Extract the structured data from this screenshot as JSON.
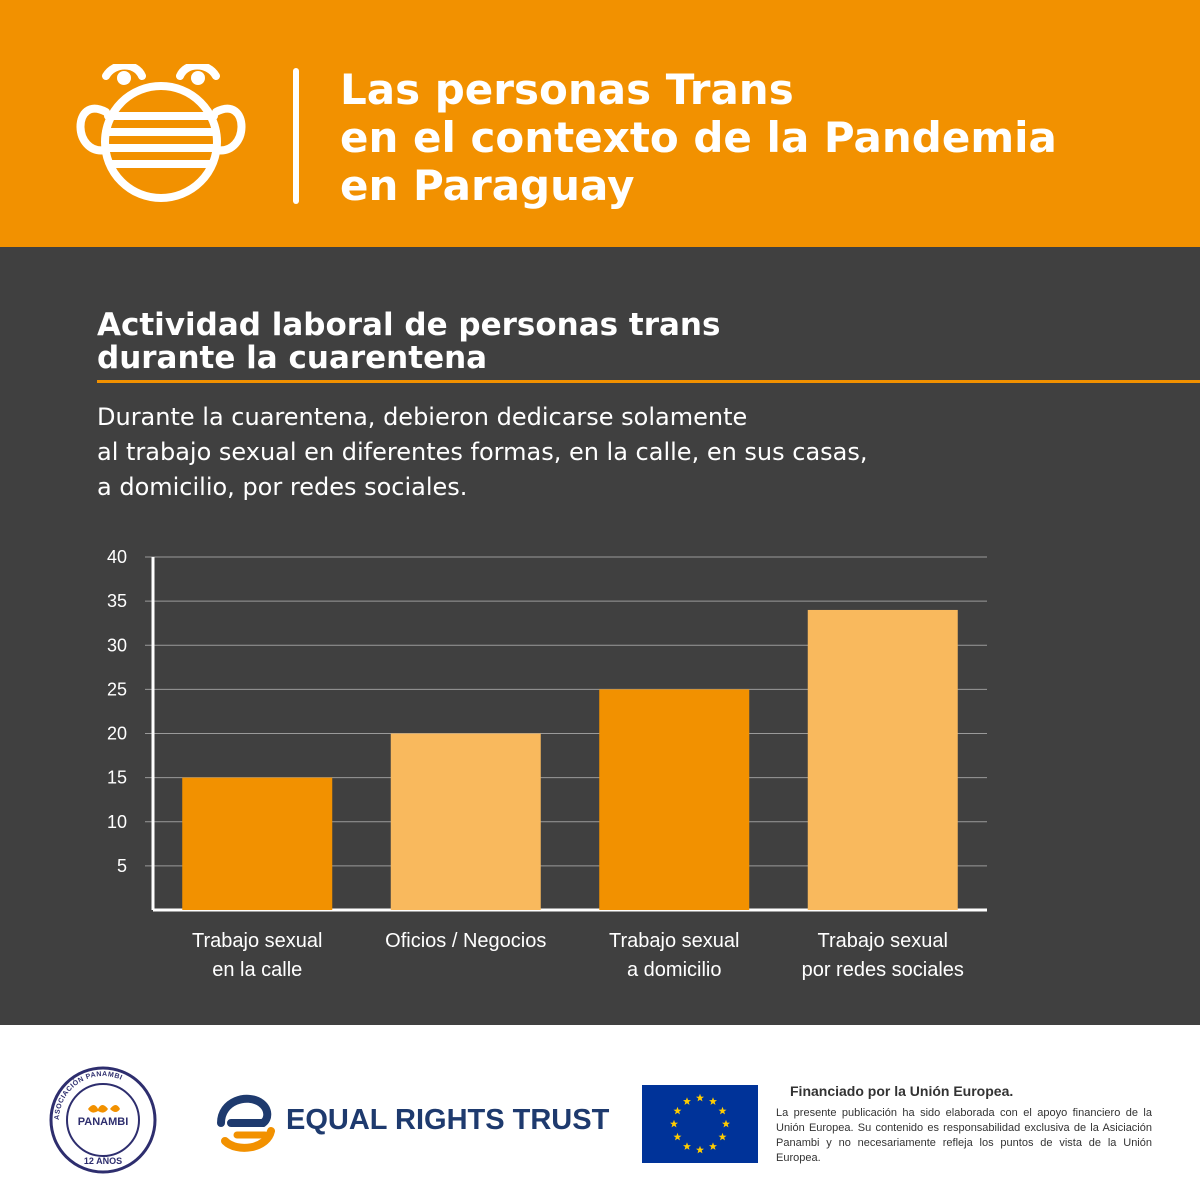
{
  "header": {
    "title_lines": [
      "Las personas Trans",
      "en el contexto de la Pandemia",
      "en Paraguay"
    ],
    "icon": "face-mask-icon",
    "accent_color": "#f29100"
  },
  "section": {
    "title_lines": [
      "Actividad laboral de personas trans",
      "durante la cuarentena"
    ],
    "description_lines": [
      "Durante la cuarentena, debieron dedicarse solamente",
      "al trabajo sexual en diferentes formas, en la calle, en sus casas,",
      "a domicilio, por redes sociales."
    ]
  },
  "chart_data": {
    "type": "bar",
    "categories": [
      [
        "Trabajo sexual",
        "en la calle"
      ],
      [
        "Oficios / Negocios"
      ],
      [
        "Trabajo sexual",
        "a domicilio"
      ],
      [
        "Trabajo sexual",
        "por redes sociales"
      ]
    ],
    "values": [
      15,
      20,
      25,
      34
    ],
    "bar_colors": [
      "#f29100",
      "#f9b95d",
      "#f29100",
      "#f9b95d"
    ],
    "yticks": [
      5,
      10,
      15,
      20,
      25,
      30,
      35,
      40
    ],
    "ylim": [
      0,
      40
    ],
    "grid": true,
    "xlabel": "",
    "ylabel": ""
  },
  "footer": {
    "panambi": {
      "ring_text": "ASOCIACIÓN PANAMBI",
      "name": "PANAMBI",
      "years": "12 AÑOS"
    },
    "ert_name": "EQUAL RIGHTS TRUST",
    "eu_title": "Financiado por la Unión Europea.",
    "eu_note": "La presente publicación ha sido elaborada con el apoyo financiero de la Unión Europea. Su contenido es responsabilidad exclusiva de la Asiciación Panambi y no necesariamente refleja los puntos de vista de la Unión Europea.",
    "eu_flag_colors": {
      "field": "#003399",
      "stars": "#ffcc00"
    }
  }
}
